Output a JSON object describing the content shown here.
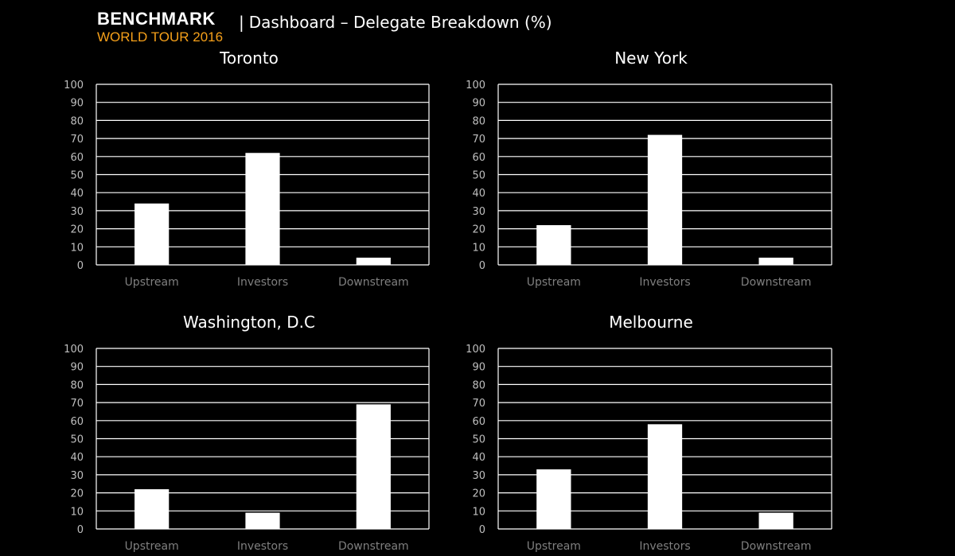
{
  "header": {
    "brand_line1": "BENCHMARK",
    "brand_line2": "WORLD TOUR 2016",
    "brand_line2_color": "#f5a01a",
    "pipe": "|",
    "title": "Dashboard – Delegate Breakdown (%)"
  },
  "colors": {
    "background": "#000000",
    "bar": "#ffffff",
    "gridline": "#ffffff",
    "tick_label": "#bfbfbf",
    "category_label": "#7f7f7f"
  },
  "chart_data": [
    {
      "type": "bar",
      "title": "Toronto",
      "categories": [
        "Upstream",
        "Investors",
        "Downstream"
      ],
      "values": [
        34,
        62,
        4
      ],
      "ylim": [
        0,
        100
      ],
      "yticks": [
        0,
        10,
        20,
        30,
        40,
        50,
        60,
        70,
        80,
        90,
        100
      ],
      "grid": true,
      "legend": "none"
    },
    {
      "type": "bar",
      "title": "New York",
      "categories": [
        "Upstream",
        "Investors",
        "Downstream"
      ],
      "values": [
        22,
        72,
        4
      ],
      "ylim": [
        0,
        100
      ],
      "yticks": [
        0,
        10,
        20,
        30,
        40,
        50,
        60,
        70,
        80,
        90,
        100
      ],
      "grid": true,
      "legend": "none"
    },
    {
      "type": "bar",
      "title": "Washington, D.C",
      "categories": [
        "Upstream",
        "Investors",
        "Downstream"
      ],
      "values": [
        22,
        9,
        69
      ],
      "ylim": [
        0,
        100
      ],
      "yticks": [
        0,
        10,
        20,
        30,
        40,
        50,
        60,
        70,
        80,
        90,
        100
      ],
      "grid": true,
      "legend": "none"
    },
    {
      "type": "bar",
      "title": "Melbourne",
      "categories": [
        "Upstream",
        "Investors",
        "Downstream"
      ],
      "values": [
        33,
        58,
        9
      ],
      "ylim": [
        0,
        100
      ],
      "yticks": [
        0,
        10,
        20,
        30,
        40,
        50,
        60,
        70,
        80,
        90,
        100
      ],
      "grid": true,
      "legend": "none"
    }
  ]
}
